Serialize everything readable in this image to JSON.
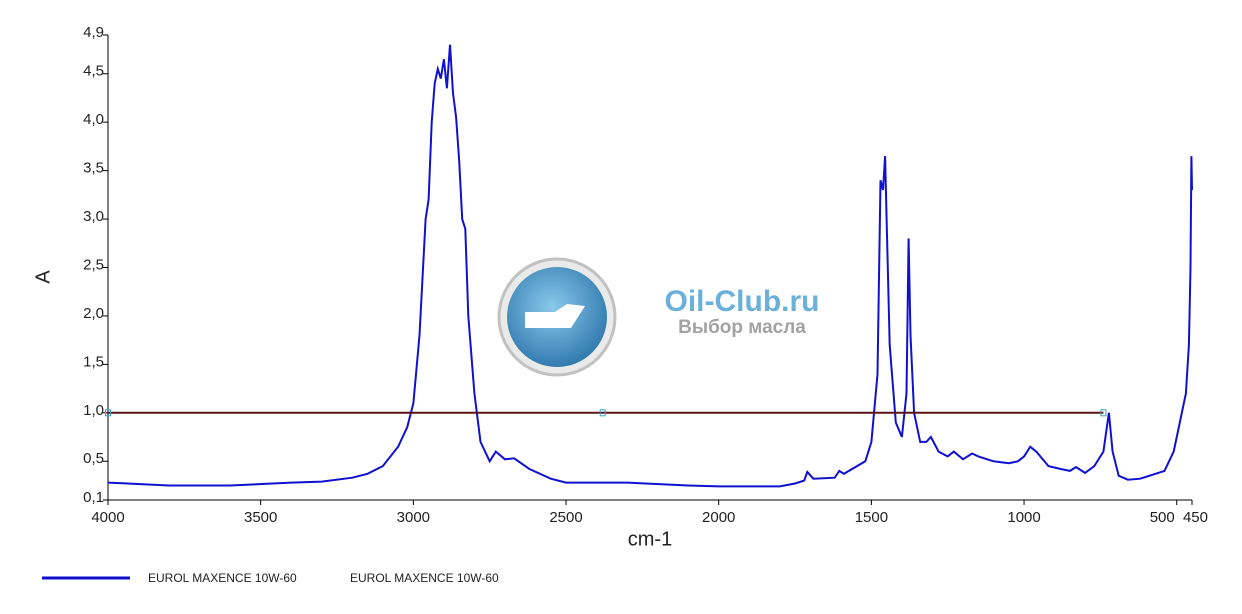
{
  "chart_data": {
    "type": "line",
    "x_label": "cm-1",
    "y_label": "A",
    "watermark": {
      "title": "Oil-Club.ru",
      "subtitle": "Выбор масла"
    },
    "xlim": [
      4000,
      450
    ],
    "ylim": [
      0.1,
      4.9
    ],
    "xticks": [
      4000,
      3500,
      3000,
      2500,
      2000,
      1500,
      1000,
      500,
      450
    ],
    "yticks": [
      {
        "value": 0.1,
        "label": "0,1"
      },
      {
        "value": 0.5,
        "label": "0,5"
      },
      {
        "value": 1.0,
        "label": "1,0"
      },
      {
        "value": 1.5,
        "label": "1,5"
      },
      {
        "value": 2.0,
        "label": "2,0"
      },
      {
        "value": 2.5,
        "label": "2,5"
      },
      {
        "value": 3.0,
        "label": "3,0"
      },
      {
        "value": 3.5,
        "label": "3,5"
      },
      {
        "value": 4.0,
        "label": "4,0"
      },
      {
        "value": 4.5,
        "label": "4,5"
      },
      {
        "value": 4.9,
        "label": "4,9"
      }
    ],
    "series": [
      {
        "name": "EUROL MAXENCE 10W-60",
        "color": "#1010d0",
        "x": [
          4000,
          3800,
          3600,
          3400,
          3300,
          3200,
          3150,
          3100,
          3050,
          3020,
          3000,
          2980,
          2960,
          2950,
          2940,
          2930,
          2920,
          2910,
          2900,
          2890,
          2880,
          2870,
          2860,
          2850,
          2840,
          2830,
          2820,
          2800,
          2780,
          2750,
          2730,
          2700,
          2670,
          2620,
          2550,
          2500,
          2300,
          2100,
          2000,
          1800,
          1750,
          1720,
          1710,
          1690,
          1620,
          1605,
          1590,
          1520,
          1500,
          1480,
          1470,
          1462,
          1455,
          1450,
          1440,
          1420,
          1400,
          1385,
          1378,
          1372,
          1360,
          1340,
          1320,
          1305,
          1280,
          1250,
          1230,
          1200,
          1170,
          1150,
          1100,
          1050,
          1020,
          1000,
          980,
          960,
          920,
          880,
          850,
          830,
          800,
          770,
          740,
          722,
          710,
          690,
          660,
          620,
          580,
          540,
          510,
          490,
          470,
          460,
          455,
          452,
          450
        ],
        "values": [
          0.28,
          0.25,
          0.25,
          0.28,
          0.29,
          0.33,
          0.37,
          0.45,
          0.65,
          0.85,
          1.1,
          1.8,
          3.0,
          3.2,
          4.0,
          4.4,
          4.55,
          4.45,
          4.65,
          4.35,
          4.8,
          4.3,
          4.05,
          3.6,
          3.0,
          2.9,
          2.0,
          1.2,
          0.7,
          0.5,
          0.6,
          0.52,
          0.53,
          0.42,
          0.32,
          0.28,
          0.28,
          0.25,
          0.24,
          0.24,
          0.27,
          0.3,
          0.39,
          0.32,
          0.33,
          0.4,
          0.37,
          0.5,
          0.7,
          1.4,
          3.4,
          3.3,
          3.65,
          3.0,
          1.7,
          0.9,
          0.75,
          1.2,
          2.8,
          1.8,
          1.0,
          0.7,
          0.7,
          0.75,
          0.6,
          0.55,
          0.6,
          0.52,
          0.58,
          0.55,
          0.5,
          0.48,
          0.5,
          0.55,
          0.65,
          0.6,
          0.45,
          0.42,
          0.4,
          0.44,
          0.38,
          0.45,
          0.6,
          1.0,
          0.6,
          0.35,
          0.31,
          0.32,
          0.36,
          0.4,
          0.6,
          0.9,
          1.2,
          1.7,
          2.5,
          3.65,
          3.3
        ]
      },
      {
        "name": "EUROL MAXENCE 10W-60",
        "color": "#5a1515",
        "x": [
          4000,
          2380,
          740
        ],
        "values": [
          1.0,
          1.0,
          1.0
        ]
      }
    ]
  }
}
